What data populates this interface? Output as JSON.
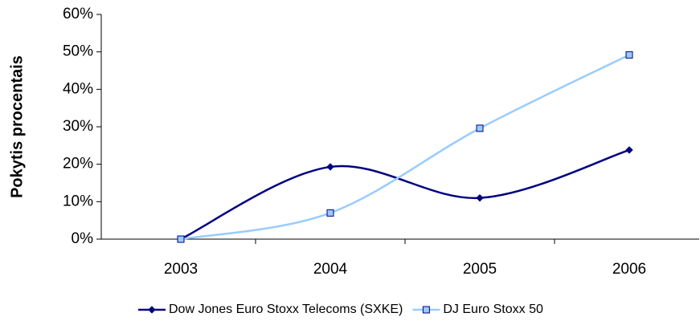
{
  "chart_data": {
    "type": "line",
    "ylabel": "Pokytis procentais",
    "categories": [
      "2003",
      "2004",
      "2005",
      "2006"
    ],
    "series": [
      {
        "name": "Dow Jones Euro Stoxx Telecoms (SXKE)",
        "color": "#000080",
        "marker": "diamond",
        "values": [
          0,
          19.3,
          11,
          23.8
        ]
      },
      {
        "name": "DJ Euro Stoxx 50",
        "color": "#99ccff",
        "marker": "square",
        "values": [
          0,
          7,
          29.6,
          49.2
        ]
      }
    ],
    "ylim": [
      0,
      60
    ],
    "yticks": [
      {
        "value": 0,
        "label": "0%"
      },
      {
        "value": 10,
        "label": "10%"
      },
      {
        "value": 20,
        "label": "20%"
      },
      {
        "value": 30,
        "label": "30%"
      },
      {
        "value": 40,
        "label": "40%"
      },
      {
        "value": 50,
        "label": "50%"
      },
      {
        "value": 60,
        "label": "60%"
      }
    ],
    "smooth": true,
    "legend": "bottom"
  }
}
